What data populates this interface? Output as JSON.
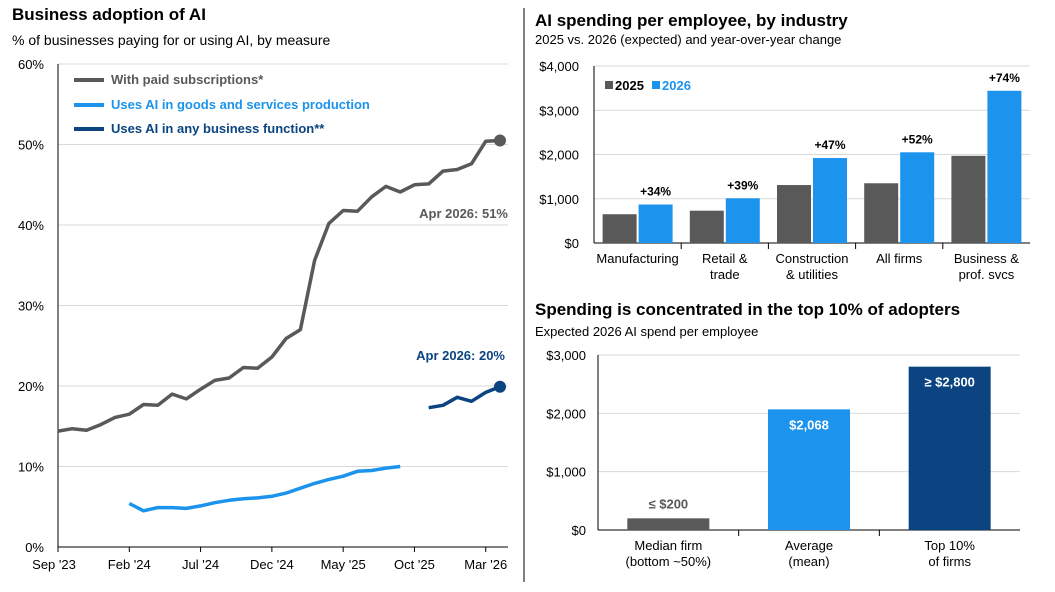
{
  "colors": {
    "gray": "#595959",
    "lightblue": "#1c93ec",
    "navy": "#0b4480",
    "grid": "#d9d9d9",
    "divider": "#000000"
  },
  "left": {
    "title": "Business adoption of AI",
    "subtitle": "% of businesses paying for or using AI, by measure",
    "legend": [
      "With paid subscriptions*",
      "Uses AI in goods and services production",
      "Uses AI in any business function**"
    ],
    "annotation_gray": "Apr 2026: 51%",
    "annotation_navy": "Apr 2026: 20%"
  },
  "top_right": {
    "title": "AI spending per employee, by industry",
    "subtitle": "2025 vs. 2026 (expected) and year-over-year change",
    "legend": [
      "2025",
      "2026"
    ]
  },
  "bottom_right": {
    "title": "Spending is concentrated in the top 10% of adopters",
    "subtitle": "Expected 2026 AI spend per employee"
  },
  "chart_data": [
    {
      "type": "line",
      "title": "Business adoption of AI",
      "ylabel": "% of businesses",
      "ylim": [
        0,
        60
      ],
      "yticks": [
        "0%",
        "10%",
        "20%",
        "30%",
        "40%",
        "50%",
        "60%"
      ],
      "xticks": [
        "Sep '23",
        "Feb '24",
        "Jul '24",
        "Dec '24",
        "May '25",
        "Oct '25",
        "Mar '26"
      ],
      "x_range_months": [
        "2023-09",
        "2026-04"
      ],
      "grid": true,
      "legend_position": "top-left",
      "series": [
        {
          "name": "With paid subscriptions*",
          "color": "#595959",
          "points": [
            [
              "2023-09",
              14.4
            ],
            [
              "2023-10",
              14.7
            ],
            [
              "2023-11",
              14.5
            ],
            [
              "2023-12",
              15.2
            ],
            [
              "2024-01",
              16.1
            ],
            [
              "2024-02",
              16.5
            ],
            [
              "2024-03",
              17.7
            ],
            [
              "2024-04",
              17.6
            ],
            [
              "2024-05",
              19.0
            ],
            [
              "2024-06",
              18.4
            ],
            [
              "2024-07",
              19.6
            ],
            [
              "2024-08",
              20.7
            ],
            [
              "2024-09",
              21.0
            ],
            [
              "2024-10",
              22.3
            ],
            [
              "2024-11",
              22.2
            ],
            [
              "2024-12",
              23.6
            ],
            [
              "2025-01",
              25.9
            ],
            [
              "2025-02",
              27.0
            ],
            [
              "2025-03",
              35.6
            ],
            [
              "2025-04",
              40.2
            ],
            [
              "2025-05",
              41.8
            ],
            [
              "2025-06",
              41.7
            ],
            [
              "2025-07",
              43.5
            ],
            [
              "2025-08",
              44.8
            ],
            [
              "2025-09",
              44.1
            ],
            [
              "2025-10",
              45.0
            ],
            [
              "2025-11",
              45.1
            ],
            [
              "2025-12",
              46.7
            ],
            [
              "2026-01",
              46.9
            ],
            [
              "2026-02",
              47.6
            ],
            [
              "2026-03",
              50.4
            ],
            [
              "2026-04",
              50.5
            ]
          ]
        },
        {
          "name": "Uses AI in goods and services production",
          "color": "#1c93ec",
          "points": [
            [
              "2024-02",
              5.4
            ],
            [
              "2024-03",
              4.5
            ],
            [
              "2024-04",
              4.9
            ],
            [
              "2024-05",
              4.9
            ],
            [
              "2024-06",
              4.8
            ],
            [
              "2024-07",
              5.1
            ],
            [
              "2024-08",
              5.5
            ],
            [
              "2024-09",
              5.8
            ],
            [
              "2024-10",
              6.0
            ],
            [
              "2024-11",
              6.1
            ],
            [
              "2024-12",
              6.3
            ],
            [
              "2025-01",
              6.7
            ],
            [
              "2025-02",
              7.3
            ],
            [
              "2025-03",
              7.9
            ],
            [
              "2025-04",
              8.4
            ],
            [
              "2025-05",
              8.8
            ],
            [
              "2025-06",
              9.4
            ],
            [
              "2025-07",
              9.5
            ],
            [
              "2025-08",
              9.8
            ],
            [
              "2025-09",
              10.0
            ]
          ]
        },
        {
          "name": "Uses AI in any business function**",
          "color": "#0b4480",
          "points": [
            [
              "2025-11",
              17.3
            ],
            [
              "2025-12",
              17.6
            ],
            [
              "2026-01",
              18.6
            ],
            [
              "2026-02",
              18.1
            ],
            [
              "2026-03",
              19.2
            ],
            [
              "2026-04",
              19.9
            ]
          ]
        }
      ]
    },
    {
      "type": "bar",
      "title": "AI spending per employee, by industry",
      "categories": [
        "Manufacturing",
        "Retail & trade",
        "Construction & utilities",
        "All firms",
        "Business & prof. svcs"
      ],
      "category_lines": [
        [
          "Manufacturing"
        ],
        [
          "Retail &",
          "trade"
        ],
        [
          "Construction",
          "& utilities"
        ],
        [
          "All firms"
        ],
        [
          "Business &",
          "prof. svcs"
        ]
      ],
      "ylim": [
        0,
        4000
      ],
      "yticks": [
        "$0",
        "$1,000",
        "$2,000",
        "$3,000",
        "$4,000"
      ],
      "grid": true,
      "legend_position": "top-left",
      "series": [
        {
          "name": "2025",
          "color": "#595959",
          "values": [
            650,
            730,
            1310,
            1350,
            1970
          ]
        },
        {
          "name": "2026",
          "color": "#1c93ec",
          "values": [
            870,
            1010,
            1920,
            2050,
            3440
          ]
        }
      ],
      "data_labels": [
        "+34%",
        "+39%",
        "+47%",
        "+52%",
        "+74%"
      ]
    },
    {
      "type": "bar",
      "title": "Spending is concentrated in the top 10% of adopters",
      "categories": [
        "Median firm (bottom ~50%)",
        "Average (mean)",
        "Top 10% of firms"
      ],
      "category_lines": [
        [
          "Median firm",
          "(bottom ~50%)"
        ],
        [
          "Average",
          "(mean)"
        ],
        [
          "Top 10%",
          "of firms"
        ]
      ],
      "ylim": [
        0,
        3000
      ],
      "yticks": [
        "$0",
        "$1,000",
        "$2,000",
        "$3,000"
      ],
      "grid": true,
      "values": [
        200,
        2068,
        2800
      ],
      "colors": [
        "#595959",
        "#1c93ec",
        "#0b4480"
      ],
      "data_labels": [
        "≤ $200",
        "$2,068",
        "≥ $2,800"
      ]
    }
  ]
}
